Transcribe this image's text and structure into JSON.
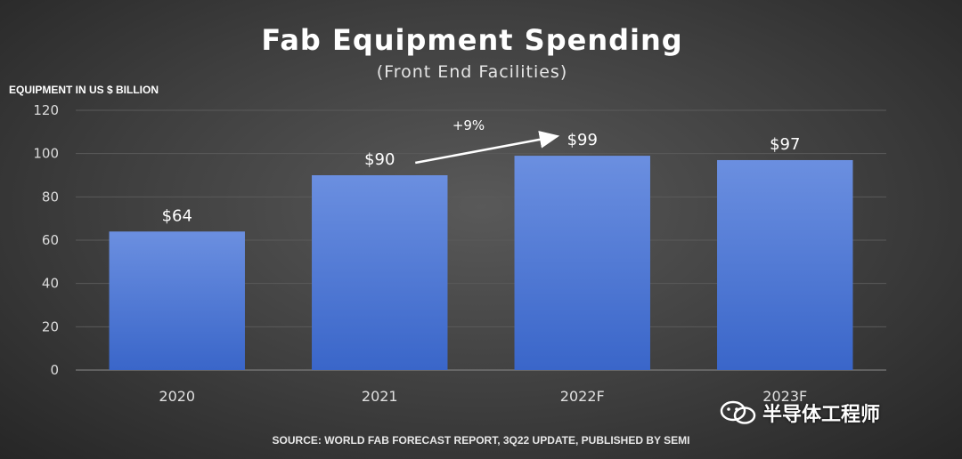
{
  "chart_data": {
    "type": "bar",
    "title": "Fab Equipment Spending",
    "subtitle": "(Front End Facilities)",
    "ylabel": "EQUIPMENT IN US $ BILLION",
    "xlabel": "",
    "categories": [
      "2020",
      "2021",
      "2022F",
      "2023F"
    ],
    "values": [
      64,
      90,
      99,
      97
    ],
    "data_labels": [
      "$64",
      "$90",
      "$99",
      "$97"
    ],
    "ylim": [
      0,
      120
    ],
    "yticks": [
      0,
      20,
      40,
      60,
      80,
      100,
      120
    ],
    "grid": true,
    "bar_color": "#4a78d6",
    "annotation": {
      "text": "+9%",
      "from": "2021",
      "to": "2022F"
    },
    "source": "SOURCE: WORLD FAB FORECAST REPORT, 3Q22 UPDATE, PUBLISHED BY SEMI"
  },
  "watermark": {
    "text": "半导体工程师",
    "icon": "wechat-icon"
  }
}
